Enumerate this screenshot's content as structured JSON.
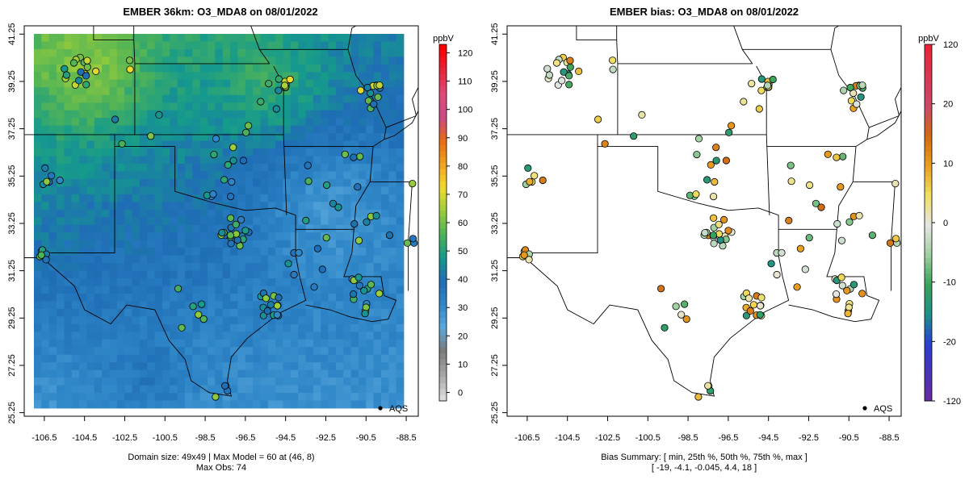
{
  "chart_data": [
    {
      "type": "heatmap",
      "title": "EMBER 36km: O3_MDA8 on 08/01/2022",
      "x_ticks": [
        "-106.5",
        "-104.5",
        "-102.5",
        "-100.5",
        "-98.5",
        "-96.5",
        "-94.5",
        "-92.5",
        "-90.5",
        "-88.5"
      ],
      "y_ticks": [
        "25.25",
        "27.25",
        "29.25",
        "31.25",
        "33.25",
        "35.25",
        "37.25",
        "39.25",
        "41.25"
      ],
      "xlim": [
        -107.5,
        -87.9
      ],
      "ylim": [
        25.1,
        41.6
      ],
      "colorbar": {
        "unit": "ppbV",
        "ticks": [
          "0",
          "10",
          "20",
          "30",
          "40",
          "50",
          "60",
          "70",
          "80",
          "90",
          "100",
          "110",
          "120"
        ],
        "range": [
          -3,
          123
        ]
      },
      "legend": "AQS",
      "footer": [
        "Domain size: 49x49 | Max Model = 60 at (46, 8)",
        "Max Obs: 74"
      ],
      "grid": false
    },
    {
      "type": "scatter",
      "title": "EMBER bias: O3_MDA8 on 08/01/2022",
      "x_ticks": [
        "-106.5",
        "-104.5",
        "-102.5",
        "-100.5",
        "-98.5",
        "-96.5",
        "-94.5",
        "-92.5",
        "-90.5",
        "-88.5"
      ],
      "y_ticks": [
        "25.25",
        "27.25",
        "29.25",
        "31.25",
        "33.25",
        "35.25",
        "37.25",
        "39.25",
        "41.25"
      ],
      "xlim": [
        -107.5,
        -87.9
      ],
      "ylim": [
        25.1,
        41.6
      ],
      "colorbar": {
        "unit": "ppbV",
        "ticks": [
          "-120",
          "-20",
          "-10",
          "0",
          "10",
          "20",
          "120"
        ],
        "range": [
          -120,
          120
        ]
      },
      "legend": "AQS",
      "footer": [
        "Bias Summary: [ min, 25th %, 50th %, 75th %, max ]",
        "[ -19,   -4.1,   -0.045,   4.4,   18 ]"
      ],
      "bias_summary": {
        "min": -19,
        "p25": -4.1,
        "p50": -0.045,
        "p75": 4.4,
        "max": 18
      },
      "grid": false
    }
  ],
  "colors": {
    "ember_scale": [
      "#d9d9d9",
      "#a6a6a6",
      "#7a7a7a",
      "#5aa8dc",
      "#2f87c8",
      "#1f6db5",
      "#159a8c",
      "#4fb357",
      "#9acd3a",
      "#f2dc2e",
      "#f2a11e",
      "#e86a14",
      "#c94a86",
      "#e04a7a",
      "#e8243a",
      "#ff0000"
    ],
    "bias_scale": [
      "#6a2a9a",
      "#2a3fd1",
      "#1f8f8a",
      "#3aa35a",
      "#9fd09f",
      "#e5e5e5",
      "#f0e060",
      "#e8a020",
      "#d06a15",
      "#c94a6a",
      "#e8243a"
    ]
  }
}
